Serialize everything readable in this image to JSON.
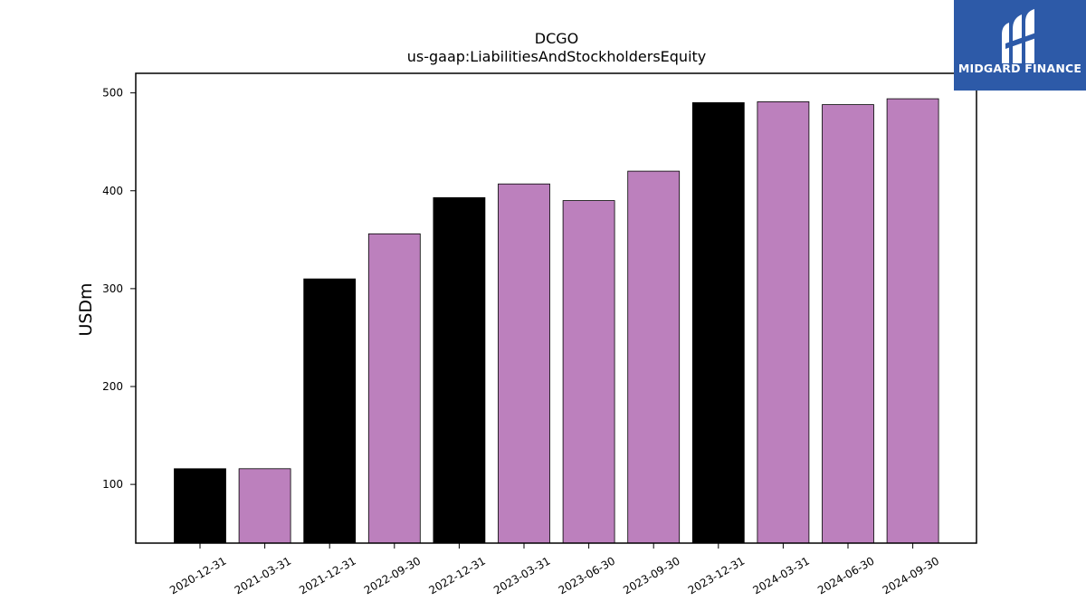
{
  "chart_data": {
    "type": "bar",
    "title": "DCGO",
    "subtitle": "us-gaap:LiabilitiesAndStockholdersEquity",
    "xlabel": "",
    "ylabel": "USDm",
    "ylim": [
      40,
      520
    ],
    "yticks": [
      100,
      200,
      300,
      400,
      500
    ],
    "grid": false,
    "categories": [
      "2020-12-31",
      "2021-03-31",
      "2021-12-31",
      "2022-09-30",
      "2022-12-31",
      "2023-03-31",
      "2023-06-30",
      "2023-09-30",
      "2023-12-31",
      "2024-03-31",
      "2024-06-30",
      "2024-09-30"
    ],
    "values": [
      116,
      116,
      310,
      356,
      393,
      407,
      390,
      420,
      490,
      491,
      488,
      494
    ],
    "bar_colors": [
      "#000000",
      "#bc80bd",
      "#000000",
      "#bc80bd",
      "#000000",
      "#bc80bd",
      "#bc80bd",
      "#bc80bd",
      "#000000",
      "#bc80bd",
      "#bc80bd",
      "#bc80bd"
    ]
  },
  "brand": {
    "name": "MIDGARD FINANCE",
    "color": "#2d5aa8"
  }
}
